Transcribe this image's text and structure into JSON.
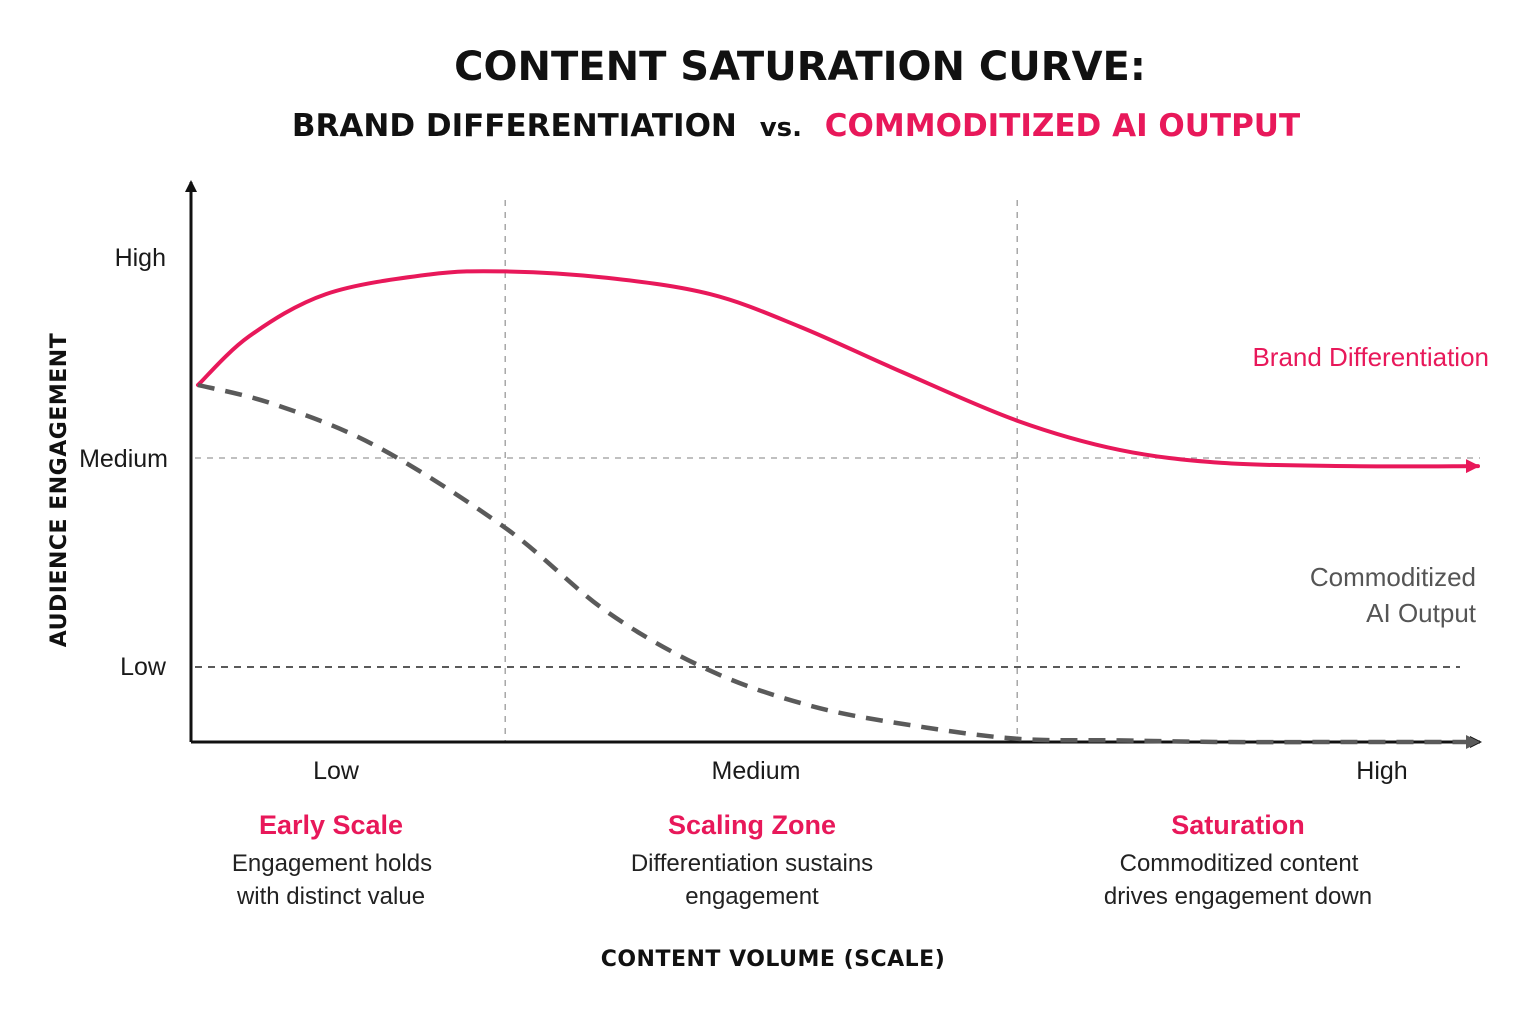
{
  "title": "CONTENT SATURATION CURVE:",
  "subtitle": {
    "part1": "BRAND DIFFERENTIATION",
    "vs": "vs.",
    "part2": "COMMODITIZED AI OUTPUT"
  },
  "colors": {
    "accent": "#e8185a",
    "gray": "#5a5a5a",
    "gridline": "#9a9a9a",
    "axis": "#111111"
  },
  "zones": [
    {
      "title": "Early Scale",
      "desc": [
        "Engagement holds",
        "with distinct value"
      ]
    },
    {
      "title": "Scaling Zone",
      "desc": [
        "Differentiation sustains",
        "engagement"
      ]
    },
    {
      "title": "Saturation",
      "desc": [
        "Commoditized content",
        "drives engagement down"
      ]
    }
  ],
  "chart_data": {
    "type": "line",
    "xlabel": "CONTENT VOLUME (SCALE)",
    "ylabel": "AUDIENCE ENGAGEMENT",
    "x_ticks": [
      "Low",
      "Medium",
      "High"
    ],
    "y_ticks": [
      "High",
      "Medium",
      "Low"
    ],
    "xlim": [
      0,
      1
    ],
    "ylim": [
      -0.37,
      1.3
    ],
    "grid": "dashed reference lines at y = Medium and y = Low; dashed vertical dividers between zones",
    "zone_dividers_x": [
      0.24,
      0.64
    ],
    "series": [
      {
        "name": "Brand Differentiation",
        "style": "solid",
        "points": [
          [
            0.0,
            0.73
          ],
          [
            0.04,
            0.88
          ],
          [
            0.1,
            1.01
          ],
          [
            0.18,
            1.07
          ],
          [
            0.24,
            1.08
          ],
          [
            0.32,
            1.06
          ],
          [
            0.4,
            1.01
          ],
          [
            0.47,
            0.91
          ],
          [
            0.55,
            0.77
          ],
          [
            0.64,
            0.62
          ],
          [
            0.72,
            0.53
          ],
          [
            0.8,
            0.49
          ],
          [
            0.9,
            0.48
          ],
          [
            1.0,
            0.48
          ]
        ]
      },
      {
        "name": "Commoditized\nAI Output",
        "style": "dashed",
        "points": [
          [
            0.0,
            0.73
          ],
          [
            0.06,
            0.67
          ],
          [
            0.14,
            0.54
          ],
          [
            0.24,
            0.29
          ],
          [
            0.32,
            0.03
          ],
          [
            0.4,
            -0.15
          ],
          [
            0.48,
            -0.26
          ],
          [
            0.56,
            -0.32
          ],
          [
            0.64,
            -0.36
          ],
          [
            0.72,
            -0.365
          ],
          [
            0.8,
            -0.37
          ],
          [
            0.9,
            -0.37
          ],
          [
            1.0,
            -0.37
          ]
        ]
      }
    ]
  }
}
